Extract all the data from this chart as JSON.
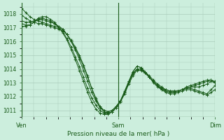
{
  "title": "Pression niveau de la mer( hPa )",
  "xlabel_ven": "Ven",
  "xlabel_sam": "Sam",
  "xlabel_dim": "Dim",
  "ylim": [
    1010.5,
    1018.8
  ],
  "xlim": [
    0,
    48
  ],
  "bg_color": "#cceedd",
  "grid_color": "#aaccbb",
  "line_color": "#1a5c1a",
  "yticks": [
    1011,
    1012,
    1013,
    1014,
    1015,
    1016,
    1017,
    1018
  ],
  "xtick_positions": [
    0,
    24,
    48
  ],
  "series": [
    [
      1018.4,
      1018.1,
      1017.8,
      1017.6,
      1017.5,
      1017.4,
      1017.3,
      1017.2,
      1017.1,
      1017.0,
      1016.9,
      1016.5,
      1016.1,
      1015.6,
      1015.0,
      1014.3,
      1013.5,
      1012.6,
      1011.8,
      1011.2,
      1010.9,
      1010.8,
      1010.9,
      1011.2,
      1011.6,
      1012.2,
      1013.0,
      1013.8,
      1014.2,
      1014.1,
      1013.8,
      1013.4,
      1013.1,
      1012.8,
      1012.5,
      1012.3,
      1012.2,
      1012.2,
      1012.3,
      1012.4,
      1012.5,
      1012.5,
      1012.4,
      1012.3,
      1012.2,
      1012.1,
      1012.3,
      1012.5
    ],
    [
      1017.9,
      1017.7,
      1017.5,
      1017.4,
      1017.3,
      1017.3,
      1017.2,
      1017.1,
      1017.0,
      1016.9,
      1016.8,
      1016.5,
      1016.0,
      1015.5,
      1014.9,
      1014.2,
      1013.4,
      1012.6,
      1011.9,
      1011.3,
      1011.0,
      1010.9,
      1011.0,
      1011.3,
      1011.7,
      1012.3,
      1013.1,
      1013.8,
      1014.2,
      1014.1,
      1013.8,
      1013.4,
      1013.1,
      1012.8,
      1012.6,
      1012.4,
      1012.3,
      1012.3,
      1012.4,
      1012.5,
      1012.6,
      1012.6,
      1012.5,
      1012.4,
      1012.3,
      1012.2,
      1012.5,
      1012.8
    ],
    [
      1017.5,
      1017.4,
      1017.4,
      1017.5,
      1017.6,
      1017.6,
      1017.5,
      1017.4,
      1017.3,
      1017.1,
      1016.9,
      1016.5,
      1016.0,
      1015.4,
      1014.7,
      1013.9,
      1013.1,
      1012.3,
      1011.7,
      1011.2,
      1011.0,
      1010.9,
      1011.0,
      1011.3,
      1011.7,
      1012.2,
      1012.9,
      1013.5,
      1013.9,
      1013.9,
      1013.7,
      1013.4,
      1013.1,
      1012.8,
      1012.6,
      1012.5,
      1012.4,
      1012.4,
      1012.4,
      1012.5,
      1012.6,
      1012.7,
      1012.7,
      1012.7,
      1012.8,
      1012.9,
      1013.1,
      1013.0
    ],
    [
      1017.3,
      1017.2,
      1017.2,
      1017.4,
      1017.6,
      1017.7,
      1017.6,
      1017.5,
      1017.3,
      1017.0,
      1016.7,
      1016.2,
      1015.6,
      1014.9,
      1014.2,
      1013.4,
      1012.6,
      1011.9,
      1011.4,
      1011.0,
      1010.8,
      1010.8,
      1010.9,
      1011.2,
      1011.7,
      1012.3,
      1013.0,
      1013.6,
      1014.0,
      1014.0,
      1013.8,
      1013.5,
      1013.2,
      1012.9,
      1012.7,
      1012.5,
      1012.4,
      1012.4,
      1012.4,
      1012.5,
      1012.6,
      1012.7,
      1012.8,
      1012.9,
      1013.0,
      1013.1,
      1013.2,
      1013.0
    ],
    [
      1017.1,
      1017.1,
      1017.2,
      1017.4,
      1017.7,
      1017.8,
      1017.8,
      1017.6,
      1017.4,
      1017.0,
      1016.6,
      1016.1,
      1015.4,
      1014.7,
      1013.9,
      1013.1,
      1012.3,
      1011.6,
      1011.1,
      1010.8,
      1010.7,
      1010.7,
      1010.9,
      1011.2,
      1011.7,
      1012.4,
      1013.1,
      1013.7,
      1014.0,
      1014.0,
      1013.7,
      1013.4,
      1013.0,
      1012.7,
      1012.5,
      1012.4,
      1012.3,
      1012.3,
      1012.4,
      1012.5,
      1012.7,
      1012.8,
      1012.9,
      1013.0,
      1013.1,
      1013.2,
      1013.2,
      1013.1
    ]
  ]
}
